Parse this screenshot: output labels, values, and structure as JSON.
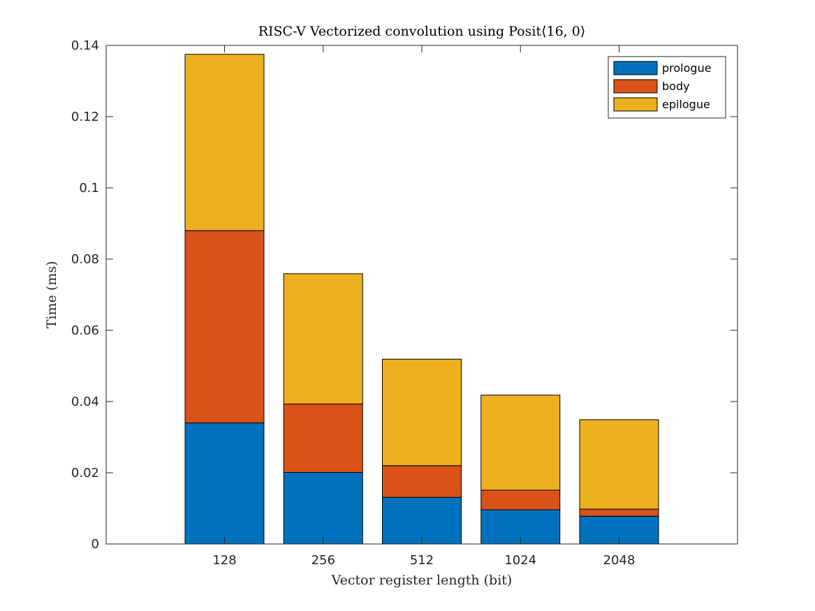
{
  "chart_data": {
    "type": "bar",
    "stacked": true,
    "title": "RISC-V Vectorized convolution using Posit⟨16, 0⟩",
    "xlabel": "Vector register length (bit)",
    "ylabel": "Time (ms)",
    "categories": [
      "128",
      "256",
      "512",
      "1024",
      "2048"
    ],
    "series": [
      {
        "name": "prologue",
        "color": "#0072BD",
        "values": [
          0.034,
          0.0201,
          0.0131,
          0.0096,
          0.0078
        ]
      },
      {
        "name": "body",
        "color": "#D95319",
        "values": [
          0.054,
          0.0192,
          0.0089,
          0.0055,
          0.002
        ]
      },
      {
        "name": "epilogue",
        "color": "#EDB120",
        "values": [
          0.0495,
          0.0366,
          0.0299,
          0.0267,
          0.0251
        ]
      }
    ],
    "ylim": [
      0,
      0.14
    ],
    "yticks": [
      "0",
      "0.02",
      "0.04",
      "0.06",
      "0.08",
      "0.1",
      "0.12",
      "0.14"
    ],
    "ytick_values": [
      0,
      0.02,
      0.04,
      0.06,
      0.08,
      0.1,
      0.12,
      0.14
    ],
    "grid": false,
    "legend_position": "top-right"
  }
}
